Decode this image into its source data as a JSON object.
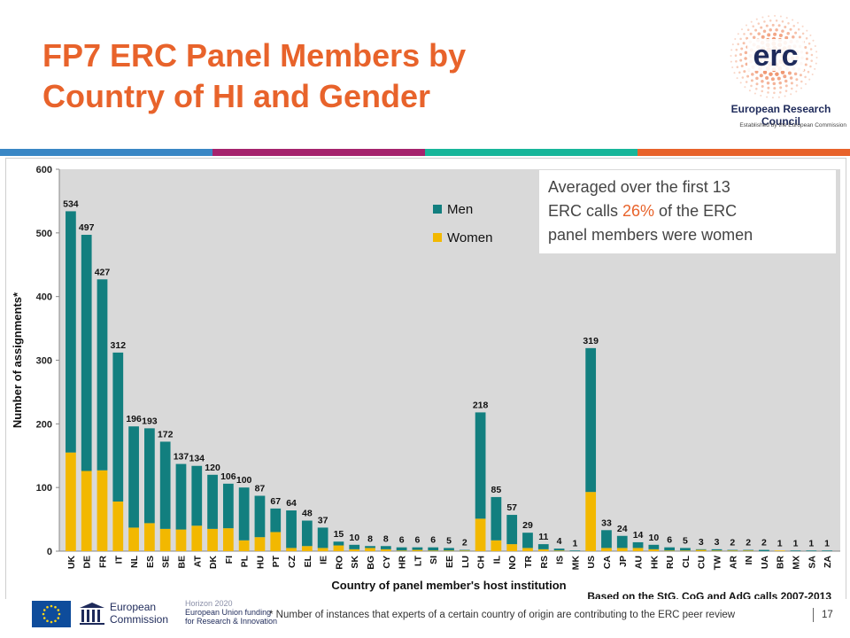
{
  "slide": {
    "title_line1": "FP7 ERC Panel Members by",
    "title_line2": "Country of HI and Gender",
    "page_number": "17",
    "footnote": "* Number of instances that experts of a certain country of origin are contributing to the ERC peer review",
    "colors": {
      "title": "#e8632b",
      "strip": [
        "#3a87c5",
        "#a5236d",
        "#17b69a",
        "#e8632b"
      ]
    }
  },
  "logo": {
    "mark": "erc",
    "name": "European Research Council",
    "subtitle": "Established by the European Commission"
  },
  "footer": {
    "commission_line1": "European",
    "commission_line2": "Commission",
    "h2020_line1": "Horizon 2020",
    "h2020_line2": "European Union funding",
    "h2020_line3": "for Research & Innovation"
  },
  "note": {
    "line1": "Averaged over the first 13",
    "line2_pre": "ERC calls ",
    "line2_pct": "26%",
    "line2_post": " of the ERC",
    "line3": "panel members were women"
  },
  "chart_data": {
    "type": "bar",
    "stacked": true,
    "ylabel": "Number of assignments*",
    "xlabel": "Country of panel member's host institution",
    "source_note": "Based on the StG, CoG and AdG calls 2007-2013",
    "ylim": [
      0,
      600
    ],
    "yticks": [
      0,
      100,
      200,
      300,
      400,
      500,
      600
    ],
    "grid": false,
    "legend_position": "top-center",
    "categories": [
      "UK",
      "DE",
      "FR",
      "IT",
      "NL",
      "ES",
      "SE",
      "BE",
      "AT",
      "DK",
      "FI",
      "PL",
      "HU",
      "PT",
      "CZ",
      "EL",
      "IE",
      "RO",
      "SK",
      "BG",
      "CY",
      "HR",
      "LT",
      "SI",
      "EE",
      "LU",
      "CH",
      "IL",
      "NO",
      "TR",
      "RS",
      "IS",
      "MK",
      "US",
      "CA",
      "JP",
      "AU",
      "HK",
      "RU",
      "CL",
      "CU",
      "TW",
      "AR",
      "IN",
      "UA",
      "BR",
      "MX",
      "SA",
      "ZA"
    ],
    "totals": [
      534,
      497,
      427,
      312,
      196,
      193,
      172,
      137,
      134,
      120,
      106,
      100,
      87,
      67,
      64,
      48,
      37,
      15,
      10,
      8,
      8,
      6,
      6,
      6,
      5,
      2,
      218,
      85,
      57,
      29,
      11,
      4,
      1,
      319,
      33,
      24,
      14,
      10,
      6,
      5,
      3,
      3,
      2,
      2,
      2,
      1,
      1,
      1,
      1
    ],
    "series": [
      {
        "name": "Women",
        "color": "#f2b800",
        "values": [
          155,
          126,
          127,
          78,
          37,
          44,
          35,
          34,
          40,
          35,
          36,
          17,
          22,
          30,
          5,
          8,
          5,
          9,
          3,
          5,
          3,
          1,
          2,
          1,
          1,
          1,
          51,
          17,
          11,
          5,
          3,
          1,
          0,
          93,
          5,
          5,
          5,
          3,
          1,
          1,
          2,
          1,
          1,
          1,
          0,
          1,
          0,
          0,
          0
        ]
      },
      {
        "name": "Men",
        "color": "#127f7f",
        "values": [
          379,
          371,
          300,
          234,
          159,
          149,
          137,
          103,
          94,
          85,
          70,
          83,
          65,
          37,
          59,
          40,
          32,
          6,
          7,
          3,
          5,
          5,
          4,
          5,
          4,
          1,
          167,
          68,
          46,
          24,
          8,
          3,
          1,
          226,
          28,
          19,
          9,
          7,
          5,
          4,
          1,
          2,
          1,
          1,
          2,
          0,
          1,
          1,
          1
        ]
      }
    ]
  }
}
